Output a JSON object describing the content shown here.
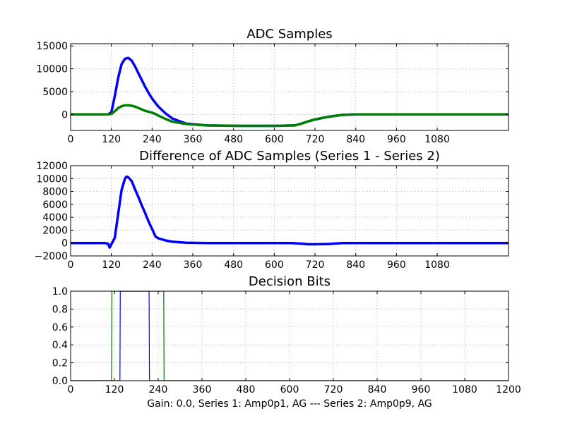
{
  "figure": {
    "xlabel": "Gain: 0.0, Series 1: Amp0p1, AG --- Series 2: Amp0p9, AG"
  },
  "chart_data": [
    {
      "type": "line",
      "title": "ADC Samples",
      "xlim": [
        0,
        1290
      ],
      "ylim": [
        -3500,
        15500
      ],
      "xticks": [
        0,
        120,
        240,
        360,
        480,
        600,
        720,
        840,
        960,
        1080
      ],
      "xtick_labels": [
        "0",
        "120",
        "240",
        "360",
        "480",
        "600",
        "720",
        "840",
        "960",
        "1080"
      ],
      "yticks": [
        0,
        5000,
        10000,
        15000
      ],
      "ytick_labels": [
        "0",
        "5000",
        "10000",
        "15000"
      ],
      "series": [
        {
          "color": "#0000ff",
          "x": [
            0,
            110,
            120,
            130,
            140,
            150,
            160,
            170,
            180,
            190,
            200,
            210,
            220,
            230,
            240,
            250,
            260,
            280,
            300,
            340,
            400,
            500,
            600,
            660,
            680,
            700,
            720,
            740,
            760,
            780,
            800,
            840,
            900,
            1000,
            1100,
            1290
          ],
          "y": [
            0,
            0,
            500,
            4000,
            8000,
            11000,
            12200,
            12400,
            11800,
            10500,
            9000,
            7500,
            6000,
            4700,
            3500,
            2500,
            1600,
            200,
            -900,
            -2000,
            -2400,
            -2500,
            -2500,
            -2400,
            -2000,
            -1500,
            -1100,
            -800,
            -500,
            -300,
            -100,
            0,
            0,
            0,
            0,
            0
          ]
        },
        {
          "color": "#007f00",
          "x": [
            0,
            110,
            120,
            130,
            140,
            150,
            160,
            170,
            180,
            190,
            200,
            210,
            220,
            230,
            240,
            250,
            260,
            280,
            300,
            340,
            400,
            500,
            600,
            660,
            680,
            700,
            720,
            740,
            760,
            780,
            800,
            840,
            900,
            1000,
            1100,
            1290
          ],
          "y": [
            0,
            0,
            100,
            700,
            1400,
            1800,
            2000,
            2000,
            1900,
            1700,
            1400,
            1100,
            800,
            600,
            400,
            100,
            -300,
            -1000,
            -1600,
            -2100,
            -2400,
            -2500,
            -2500,
            -2400,
            -2000,
            -1500,
            -1100,
            -800,
            -500,
            -300,
            -100,
            0,
            0,
            0,
            0,
            0
          ]
        }
      ]
    },
    {
      "type": "line",
      "title": "Difference of ADC Samples (Series 1 - Series 2)",
      "xlim": [
        0,
        1290
      ],
      "ylim": [
        -2000,
        12000
      ],
      "xticks": [
        0,
        120,
        240,
        360,
        480,
        600,
        720,
        840,
        960,
        1080
      ],
      "xtick_labels": [
        "0",
        "120",
        "240",
        "360",
        "480",
        "600",
        "720",
        "840",
        "960",
        "1080"
      ],
      "yticks": [
        -2000,
        0,
        2000,
        4000,
        6000,
        8000,
        10000,
        12000
      ],
      "ytick_labels": [
        "−2000",
        "0",
        "2000",
        "4000",
        "6000",
        "8000",
        "10000",
        "12000"
      ],
      "series": [
        {
          "color": "#0000ff",
          "x": [
            0,
            100,
            110,
            115,
            120,
            125,
            130,
            140,
            150,
            160,
            165,
            170,
            180,
            190,
            200,
            210,
            220,
            230,
            240,
            250,
            260,
            280,
            300,
            340,
            400,
            500,
            650,
            680,
            700,
            720,
            760,
            800,
            900,
            1290
          ],
          "y": [
            0,
            0,
            -100,
            -700,
            -200,
            300,
            800,
            4500,
            8200,
            10000,
            10300,
            10200,
            9600,
            8300,
            7100,
            5800,
            4600,
            3300,
            2200,
            1000,
            700,
            400,
            200,
            50,
            0,
            0,
            0,
            -100,
            -200,
            -200,
            -150,
            0,
            0,
            0
          ]
        }
      ]
    },
    {
      "type": "line",
      "title": "Decision Bits",
      "xlim": [
        0,
        1200
      ],
      "ylim": [
        0,
        1
      ],
      "xticks": [
        0,
        120,
        240,
        360,
        480,
        600,
        720,
        840,
        960,
        1080,
        1200
      ],
      "xtick_labels": [
        "0",
        "120",
        "240",
        "360",
        "480",
        "600",
        "720",
        "840",
        "960",
        "1080",
        "1200"
      ],
      "yticks": [
        0,
        0.2,
        0.4,
        0.6,
        0.8,
        1.0
      ],
      "ytick_labels": [
        "0.0",
        "0.2",
        "0.4",
        "0.6",
        "0.8",
        "1.0"
      ],
      "series": [
        {
          "color": "#007f00",
          "x": [
            0,
            112,
            113,
            255,
            256,
            1200
          ],
          "y": [
            0,
            0,
            1,
            1,
            0,
            0
          ]
        },
        {
          "color": "#0000ff",
          "x": [
            0,
            135,
            136,
            215,
            216,
            1200
          ],
          "y": [
            0,
            0,
            1,
            1,
            0,
            0
          ]
        }
      ]
    }
  ]
}
